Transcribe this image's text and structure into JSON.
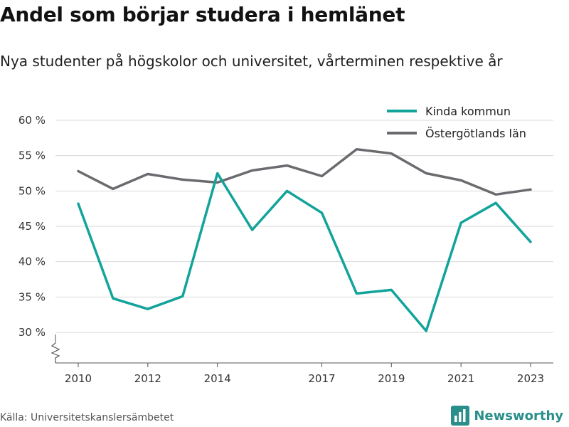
{
  "header": {
    "title": "Andel som börjar studera i hemlänet",
    "subtitle": "Nya studenter på högskolor och universitet, vårterminen respektive år"
  },
  "footer": {
    "source": "Källa: Universitetskanslersämbetet",
    "brand": "Newsworthy"
  },
  "colors": {
    "kinda": "#12a39a",
    "ostergotland": "#6b6b6f",
    "grid": "#d9d9d9",
    "brand": "#2a8f8a"
  },
  "icons": {
    "axis_break": "zigzag-axis-break-icon",
    "brand_logo": "newsworthy-logo-icon"
  },
  "chart_data": {
    "type": "line",
    "x": [
      2010,
      2011,
      2012,
      2013,
      2014,
      2015,
      2016,
      2017,
      2018,
      2019,
      2020,
      2021,
      2022,
      2023
    ],
    "x_ticks": [
      2010,
      2012,
      2014,
      2017,
      2019,
      2021,
      2023
    ],
    "y_ticks": [
      30,
      35,
      40,
      45,
      50,
      55,
      60
    ],
    "y_tick_labels": [
      "30 %",
      "35 %",
      "40 %",
      "45 %",
      "50 %",
      "55 %",
      "60 %"
    ],
    "ylim": [
      25.5,
      60
    ],
    "y_axis_break": true,
    "grid": "horizontal",
    "legend_position": "top-right",
    "series": [
      {
        "name": "Kinda kommun",
        "color": "#12a39a",
        "values": [
          48.2,
          34.8,
          33.3,
          35.1,
          52.5,
          44.5,
          50.0,
          46.9,
          35.5,
          36.0,
          30.2,
          45.5,
          48.3,
          42.8
        ]
      },
      {
        "name": "Östergötlands län",
        "color": "#6b6b6f",
        "values": [
          52.8,
          50.3,
          52.4,
          51.6,
          51.2,
          52.9,
          53.6,
          52.1,
          55.9,
          55.3,
          52.5,
          51.5,
          49.5,
          50.2
        ]
      }
    ]
  }
}
